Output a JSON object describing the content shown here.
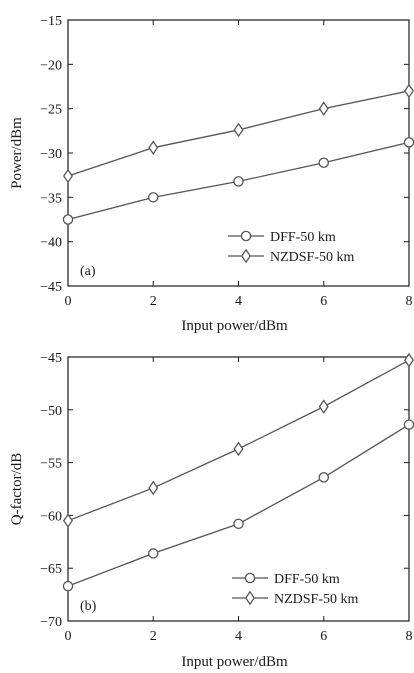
{
  "chart_data": [
    {
      "type": "line",
      "panel_label": "(a)",
      "xlabel": "Input power/dBm",
      "ylabel": "Power/dBm",
      "xlim": [
        0,
        8
      ],
      "ylim": [
        -45,
        -15
      ],
      "xticks": [
        0,
        2,
        4,
        6,
        8
      ],
      "yticks": [
        -45,
        -40,
        -35,
        -30,
        -25,
        -20,
        -15
      ],
      "xtick_labels": [
        "0",
        "2",
        "4",
        "6",
        "8"
      ],
      "ytick_labels": [
        "−45",
        "−40",
        "−35",
        "−30",
        "−25",
        "−20",
        "−15"
      ],
      "grid": false,
      "legend_position": "bottom-right",
      "x": [
        0,
        2,
        4,
        6,
        8
      ],
      "series": [
        {
          "name": "DFF-50 km",
          "marker": "circle",
          "values": [
            -37.5,
            -35.0,
            -33.2,
            -31.1,
            -28.8
          ]
        },
        {
          "name": "NZDSF-50 km",
          "marker": "diamond",
          "values": [
            -32.6,
            -29.4,
            -27.4,
            -25.0,
            -23.0
          ]
        }
      ]
    },
    {
      "type": "line",
      "panel_label": "(b)",
      "xlabel": "Input power/dBm",
      "ylabel": "Q-factor/dB",
      "xlim": [
        0,
        8
      ],
      "ylim": [
        -70,
        -45
      ],
      "xticks": [
        0,
        2,
        4,
        6,
        8
      ],
      "yticks": [
        -70,
        -65,
        -60,
        -55,
        -50,
        -45
      ],
      "xtick_labels": [
        "0",
        "2",
        "4",
        "6",
        "8"
      ],
      "ytick_labels": [
        "−70",
        "−65",
        "−60",
        "−55",
        "−50",
        "−45"
      ],
      "grid": false,
      "legend_position": "bottom-right",
      "x": [
        0,
        2,
        4,
        6,
        8
      ],
      "series": [
        {
          "name": "DFF-50 km",
          "marker": "circle",
          "values": [
            -66.7,
            -63.6,
            -60.8,
            -56.4,
            -51.4
          ]
        },
        {
          "name": "NZDSF-50 km",
          "marker": "diamond",
          "values": [
            -60.5,
            -57.4,
            -53.7,
            -49.7,
            -45.3
          ]
        }
      ]
    }
  ],
  "colors": {
    "line": "#555555",
    "axis": "#1a1a1a",
    "background": "#ffffff"
  }
}
